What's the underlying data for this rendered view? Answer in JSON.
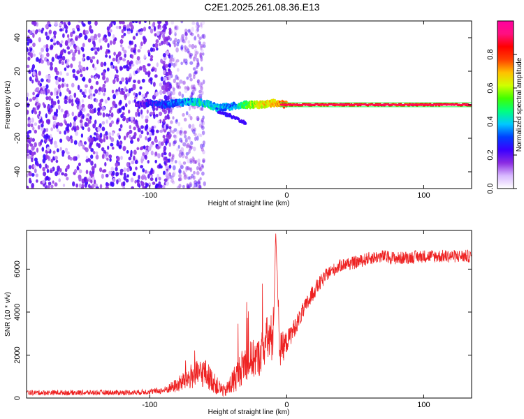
{
  "title": "C2E1.2025.261.08.36.E13",
  "colorbar": {
    "label": "Normalized spectral amplitude",
    "ticks": [
      {
        "v": 0.0,
        "label": "0.0"
      },
      {
        "v": 0.2,
        "label": "0.2"
      },
      {
        "v": 0.4,
        "label": "0.4"
      },
      {
        "v": 0.6,
        "label": "0.6"
      },
      {
        "v": 0.8,
        "label": "0.8"
      }
    ],
    "colors": [
      "#ffffff",
      "#d8b8ff",
      "#8a2be2",
      "#3a00ff",
      "#0040ff",
      "#00c8ff",
      "#00ff80",
      "#40ff00",
      "#d0ff00",
      "#ffc000",
      "#ff4000",
      "#ff0000",
      "#ff1080",
      "#ff00a0"
    ]
  },
  "chart_data": [
    {
      "type": "heatmap",
      "title": "C2E1.2025.261.08.36.E13",
      "xlabel": "Height of straight line (km)",
      "ylabel": "Frequency (Hz)",
      "xlim": [
        -190,
        135
      ],
      "ylim": [
        -50,
        50
      ],
      "xticks": [
        {
          "v": -100,
          "label": "-100"
        },
        {
          "v": 0,
          "label": "0"
        },
        {
          "v": 100,
          "label": "100"
        }
      ],
      "yticks": [
        {
          "v": -40,
          "label": "-40"
        },
        {
          "v": -20,
          "label": "-20"
        },
        {
          "v": 0,
          "label": "0"
        },
        {
          "v": 20,
          "label": "20"
        },
        {
          "v": 40,
          "label": "40"
        }
      ],
      "noise_region_x": [
        -190,
        -85
      ],
      "signal_band": {
        "x": [
          -110,
          -100,
          -90,
          -80,
          -70,
          -60,
          -50,
          -40,
          -30,
          -20,
          -10,
          0,
          10,
          50,
          100,
          135
        ],
        "freq": [
          0,
          1,
          0,
          1,
          2,
          1,
          -2,
          -1,
          0,
          0,
          1,
          0,
          0,
          0,
          0,
          0
        ],
        "amplitude": [
          0.25,
          0.3,
          0.35,
          0.4,
          0.45,
          0.5,
          0.45,
          0.4,
          0.6,
          0.7,
          0.75,
          0.85,
          0.9,
          0.9,
          0.9,
          0.9
        ]
      },
      "branch": {
        "x": [
          -50,
          -40,
          -30
        ],
        "freq": [
          -4,
          -7,
          -11
        ]
      }
    },
    {
      "type": "line",
      "xlabel": "Height of straight line (km)",
      "ylabel": "SNR (10 * v/v)",
      "xlim": [
        -190,
        135
      ],
      "ylim": [
        0,
        7800
      ],
      "xticks": [
        {
          "v": -100,
          "label": "-100"
        },
        {
          "v": 0,
          "label": "0"
        },
        {
          "v": 100,
          "label": "100"
        }
      ],
      "yticks": [
        {
          "v": 0,
          "label": "0"
        },
        {
          "v": 2000,
          "label": "2000"
        },
        {
          "v": 4000,
          "label": "4000"
        },
        {
          "v": 6000,
          "label": "6000"
        }
      ],
      "series": [
        {
          "color": "#ee2222",
          "x": [
            -190,
            -150,
            -110,
            -90,
            -80,
            -70,
            -60,
            -50,
            -45,
            -40,
            -30,
            -20,
            -15,
            -10,
            -8,
            -5,
            0,
            10,
            20,
            30,
            40,
            50,
            60,
            70,
            80,
            100,
            120,
            135
          ],
          "y": [
            250,
            250,
            260,
            350,
            600,
            1000,
            1200,
            500,
            300,
            700,
            1700,
            1900,
            2700,
            2800,
            7700,
            2200,
            2600,
            3800,
            5000,
            5800,
            6200,
            6300,
            6500,
            6600,
            6500,
            6600,
            6600,
            6600
          ],
          "noise_amplitude": [
            120,
            120,
            120,
            150,
            350,
            600,
            700,
            400,
            250,
            600,
            900,
            900,
            1100,
            1200,
            0,
            900,
            500,
            400,
            400,
            300,
            300,
            300,
            300,
            300,
            300,
            300,
            300,
            300
          ]
        }
      ]
    }
  ]
}
